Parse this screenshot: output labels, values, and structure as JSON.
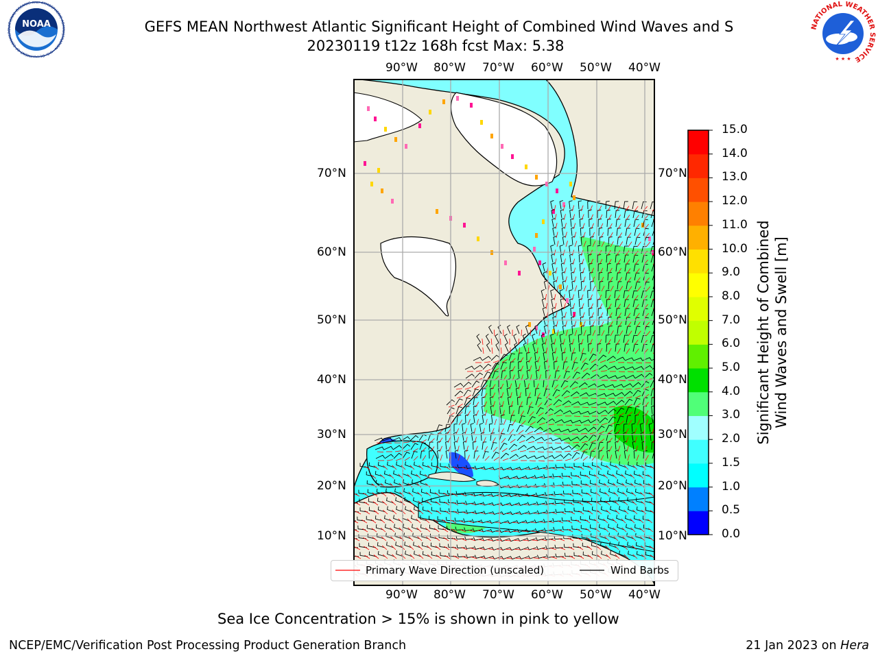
{
  "header": {
    "title_line1": "GEFS MEAN Northwest Atlantic Significant Height of Combined Wind Waves and S",
    "title_line2": "20230119 t12z 168h fcst   Max: 5.38"
  },
  "map": {
    "lon_labels": [
      "90°W",
      "80°W",
      "70°W",
      "60°W",
      "50°W",
      "40°W"
    ],
    "lat_labels": [
      "70°N",
      "60°N",
      "50°N",
      "40°N",
      "30°N",
      "20°N",
      "10°N"
    ],
    "colors": {
      "land": "#efecdc",
      "ice_region": "#ffffff",
      "ice_edge": [
        "#ff69b4",
        "#ff1493",
        "#ffd700",
        "#ffa500"
      ],
      "wave_dir": "#ff0000",
      "wind_barb": "#000000"
    }
  },
  "legend": {
    "wave_label": "Primary Wave Direction (unscaled)",
    "barb_label": "Wind Barbs"
  },
  "colorbar": {
    "label_line1": "Significant Height of Combined",
    "label_line2": "Wind Waves and Swell [m]",
    "ticks": [
      "15.0",
      "14.0",
      "13.0",
      "12.0",
      "11.0",
      "10.0",
      "9.0",
      "8.0",
      "7.0",
      "6.0",
      "5.0",
      "4.0",
      "3.0",
      "2.0",
      "1.5",
      "1.0",
      "0.5",
      "0.0"
    ],
    "colors_bottom_to_top": [
      "#0000ff",
      "#0080ff",
      "#00ffff",
      "#40ffff",
      "#a0ffff",
      "#50ff78",
      "#00e000",
      "#60f000",
      "#c0ff00",
      "#e0ff00",
      "#ffff00",
      "#ffe000",
      "#ffb000",
      "#ff8000",
      "#ff5000",
      "#ff2800",
      "#ff0000"
    ]
  },
  "note": "Sea Ice Concentration > 15% is shown in pink to yellow",
  "footer": {
    "left": "NCEP/EMC/Verification Post Processing Product Generation Branch",
    "date": "21 Jan 2023 on ",
    "machine": "Hera"
  },
  "logos": {
    "noaa_text": "NOAA",
    "noaa_ring": "NATIONAL OCEANIC AND ATMOSPHERIC ADMINISTRATION · U.S. DEPARTMENT OF COMMERCE",
    "nws_ring": "NATIONAL WEATHER SERVICE"
  }
}
